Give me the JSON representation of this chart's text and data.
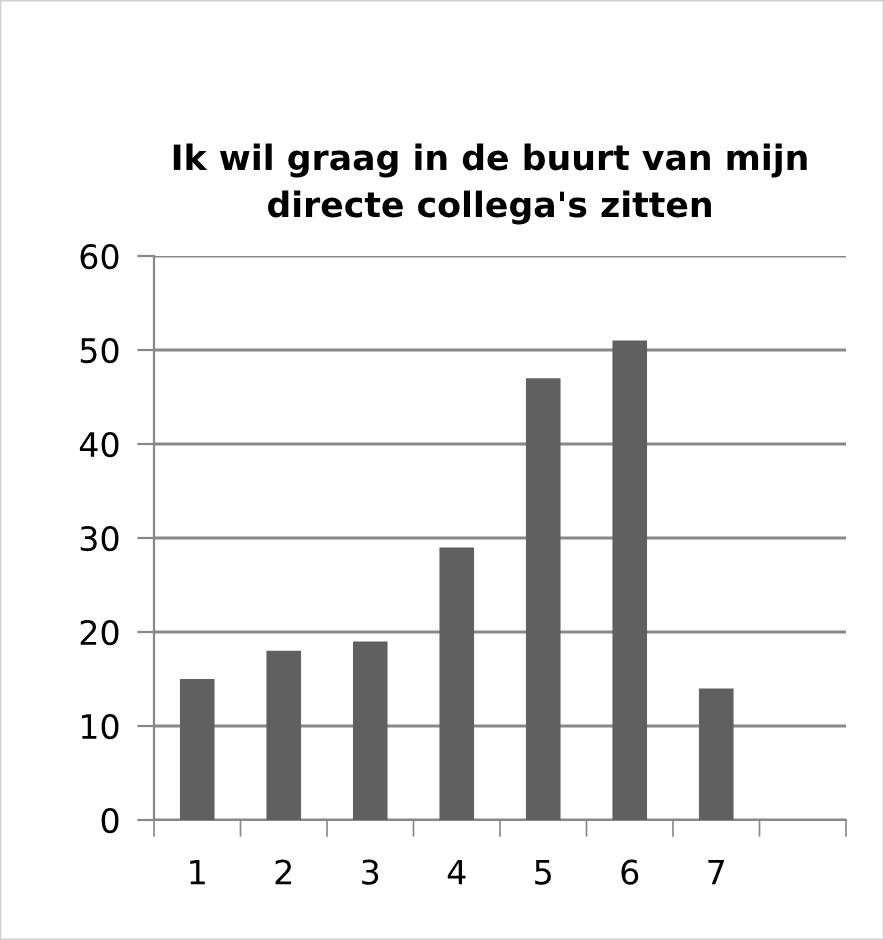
{
  "chart_data": {
    "type": "bar",
    "title": "Ik wil graag in de buurt van mijn directe collega's zitten",
    "categories": [
      "1",
      "2",
      "3",
      "4",
      "5",
      "6",
      "7",
      null
    ],
    "values": [
      15,
      18,
      19,
      29,
      47,
      51,
      14,
      null
    ],
    "color": "#606060",
    "ylim": [
      0,
      60
    ],
    "yticks": [
      0,
      10,
      20,
      30,
      40,
      50,
      60
    ],
    "grid": "y",
    "legend": false
  }
}
